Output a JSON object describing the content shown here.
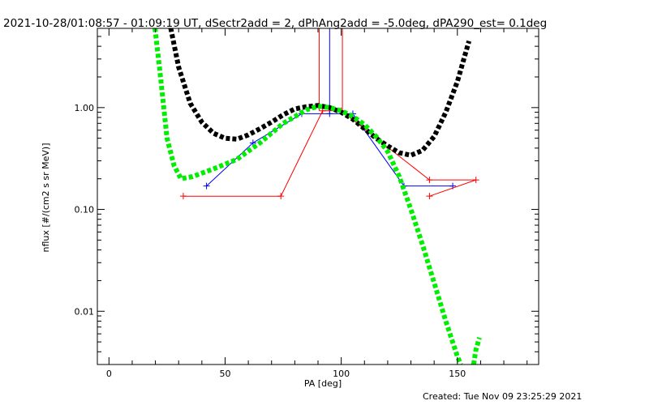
{
  "chart_data": {
    "type": "scatter",
    "title": "2021-10-28/01:08:57 - 01:09:19 UT, dSectr2add = 2, dPhAng2add = -5.0deg, dPA290_est=  0.1deg",
    "xlabel": "PA [deg]",
    "ylabel": "nflux [#/(cm2 s sr MeV)]",
    "xlim": [
      -5,
      185
    ],
    "ylim": [
      0.003,
      6
    ],
    "yscale": "log",
    "x_ticks": [
      0,
      50,
      100,
      150
    ],
    "x_tick_labels": [
      "0",
      "50",
      "100",
      "150"
    ],
    "y_ticks": [
      0.01,
      0.1,
      1.0
    ],
    "y_tick_labels": [
      "0.01",
      "0.10",
      "1.00"
    ],
    "grid": false,
    "footer": "Created: Tue Nov 09 23:25:29 2021",
    "series": [
      {
        "color": "#0000ff",
        "style": "line+plus",
        "points": [
          [
            42,
            0.17
          ],
          [
            62,
            0.45
          ],
          [
            83,
            0.87
          ],
          [
            95,
            0.87
          ],
          [
            105,
            0.87
          ],
          [
            127,
            0.17
          ],
          [
            148,
            0.17
          ]
        ],
        "upper_x": 95
      },
      {
        "color": "#ff0000",
        "style": "line+plus",
        "points": [
          [
            32,
            0.135
          ],
          [
            74,
            0.135
          ],
          [
            92,
            0.93
          ],
          [
            100,
            0.93
          ],
          [
            138,
            0.195
          ],
          [
            158,
            0.195
          ],
          [
            138,
            0.135
          ]
        ],
        "upper_x": [
          90.5,
          100.5
        ]
      },
      {
        "color": "#000000",
        "style": "thick-dashed",
        "points": [
          [
            26,
            7
          ],
          [
            30,
            2.5
          ],
          [
            35,
            1.1
          ],
          [
            40,
            0.72
          ],
          [
            45,
            0.56
          ],
          [
            50,
            0.5
          ],
          [
            55,
            0.49
          ],
          [
            60,
            0.54
          ],
          [
            65,
            0.62
          ],
          [
            70,
            0.72
          ],
          [
            75,
            0.85
          ],
          [
            80,
            0.97
          ],
          [
            85,
            1.02
          ],
          [
            90,
            1.05
          ],
          [
            95,
            1.0
          ],
          [
            100,
            0.9
          ],
          [
            105,
            0.77
          ],
          [
            110,
            0.62
          ],
          [
            115,
            0.5
          ],
          [
            120,
            0.42
          ],
          [
            125,
            0.36
          ],
          [
            130,
            0.34
          ],
          [
            135,
            0.38
          ],
          [
            140,
            0.52
          ],
          [
            145,
            0.9
          ],
          [
            150,
            1.8
          ],
          [
            155,
            4.5
          ]
        ]
      },
      {
        "color": "#00ee00",
        "style": "thick-dashed",
        "points": [
          [
            19.5,
            7
          ],
          [
            22,
            2.2
          ],
          [
            25,
            0.5
          ],
          [
            28,
            0.27
          ],
          [
            31,
            0.2
          ],
          [
            36,
            0.21
          ],
          [
            45,
            0.25
          ],
          [
            55,
            0.31
          ],
          [
            65,
            0.45
          ],
          [
            75,
            0.7
          ],
          [
            85,
            0.95
          ],
          [
            90,
            1.03
          ],
          [
            95,
            1.0
          ],
          [
            100,
            0.93
          ],
          [
            105,
            0.82
          ],
          [
            110,
            0.68
          ],
          [
            115,
            0.52
          ],
          [
            120,
            0.37
          ],
          [
            125,
            0.21
          ],
          [
            130,
            0.1
          ],
          [
            135,
            0.045
          ],
          [
            140,
            0.019
          ],
          [
            145,
            0.008
          ],
          [
            150,
            0.0036
          ],
          [
            151.5,
            0.003
          ]
        ]
      },
      {
        "color": "#00ee00",
        "style": "thick-dashed",
        "points": [
          [
            157,
            0.003
          ],
          [
            158,
            0.0042
          ],
          [
            159.5,
            0.0055
          ]
        ]
      }
    ]
  }
}
